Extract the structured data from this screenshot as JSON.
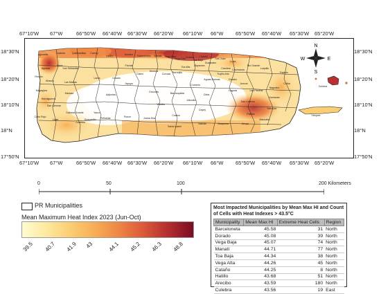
{
  "map": {
    "longitude_labels_top": [
      "67°10'W",
      "67°W",
      "66°50'W",
      "66°40'W",
      "66°30'W",
      "66°20'W",
      "66°10'W",
      "66°W",
      "65°50'W",
      "65°40'W",
      "65°30'W",
      "65°20'W"
    ],
    "longitude_labels_bottom": [
      "67°10'W",
      "67°W",
      "66°50'W",
      "66°40'W",
      "66°30'W",
      "66°20'W",
      "66°10'W",
      "66°W",
      "65°50'W",
      "65°40'W",
      "65°30'W",
      "65°20'W"
    ],
    "latitude_labels_left": [
      "18°30'N",
      "18°20'N",
      "18°10'N",
      "18°N",
      "17°50'N"
    ],
    "latitude_labels_right": [
      "18°30'N",
      "18°20'N",
      "18°10'N",
      "18°N",
      "17°50'N"
    ],
    "compass": {
      "n": "N",
      "s": "S",
      "e": "E",
      "w": "W"
    },
    "municipality_labels": [
      "Aguadilla",
      "Isabela",
      "Quebradillas",
      "Camuy",
      "Hatillo",
      "Arecibo",
      "Barceloneta",
      "Manatí",
      "Vega Baja",
      "Vega Alta",
      "Dorado",
      "Toa Baja",
      "Cataño",
      "Guaynabo",
      "Bayamón",
      "Toa Alta",
      "Naranjito",
      "Corozal",
      "Morovis",
      "Ciales",
      "Florida",
      "Utuado",
      "Lares",
      "San Sebastián",
      "Moca",
      "Aguada",
      "Rincón",
      "Añasco",
      "Las Marías",
      "Mayagüez",
      "Maricao",
      "Hormigueros",
      "San Germán",
      "Cabo Rojo",
      "Lajas",
      "Sabana Grande",
      "Yauco",
      "Guánica",
      "Guayanilla",
      "Peñuelas",
      "Adjuntas",
      "Ponce",
      "Jayuya",
      "Juana Díaz",
      "Villalba",
      "Orocovis",
      "Coamo",
      "Santa Isabel",
      "Barranquitas",
      "Aibonito",
      "Comerío",
      "Cidra",
      "Aguas Buenas",
      "Cayey",
      "Salinas",
      "Guayama",
      "Arroyo",
      "Patillas",
      "Maunabo",
      "Yabucoa",
      "San Lorenzo",
      "Caguas",
      "Gurabo",
      "Juncos",
      "Las Piedras",
      "Humacao",
      "Naguabo",
      "Ceiba",
      "Fajardo",
      "Luquillo",
      "Río Grande",
      "Canóvanas",
      "Loíza",
      "Carolina",
      "Trujillo Alto",
      "San Juan",
      "Culebra",
      "Vieques"
    ]
  },
  "scale": {
    "labels": [
      "0",
      "50",
      "100",
      "200 Kilometers"
    ]
  },
  "legend": {
    "boundary_label": "PR Municipalities",
    "title": "Mean Maximum Heat Index 2023 (Jun-Oct)",
    "ramp_labels": [
      "39.5",
      "40.7",
      "41.9",
      "43",
      "44.1",
      "45.2",
      "46.3",
      "48.8"
    ],
    "ramp_colors": [
      "#fffbd0",
      "#fbce73",
      "#ef8745",
      "#dc5c3a",
      "#b8302f",
      "#7a0d22"
    ]
  },
  "table": {
    "title": "Most Impacted Municipalities by Mean Max HI and Count of Cells with Heat Indexes > 43.5°C",
    "headers": [
      "Municipality",
      "Mean Max HI",
      "Extreme Heat Cells",
      "Region"
    ],
    "rows": [
      [
        "Barceloneta",
        "45.58",
        "31",
        "North"
      ],
      [
        "Dorado",
        "45.08",
        "39",
        "North"
      ],
      [
        "Vega Baja",
        "45.07",
        "74",
        "North"
      ],
      [
        "Manatí",
        "44.71",
        "77",
        "North"
      ],
      [
        "Toa Baja",
        "44.34",
        "38",
        "North"
      ],
      [
        "Vega Alta",
        "44.26",
        "45",
        "North"
      ],
      [
        "Cataño",
        "44.25",
        "8",
        "North"
      ],
      [
        "Hatillo",
        "43.68",
        "51",
        "North"
      ],
      [
        "Arecibo",
        "43.59",
        "180",
        "North"
      ],
      [
        "Culebra",
        "43.56",
        "19",
        "East"
      ]
    ]
  }
}
